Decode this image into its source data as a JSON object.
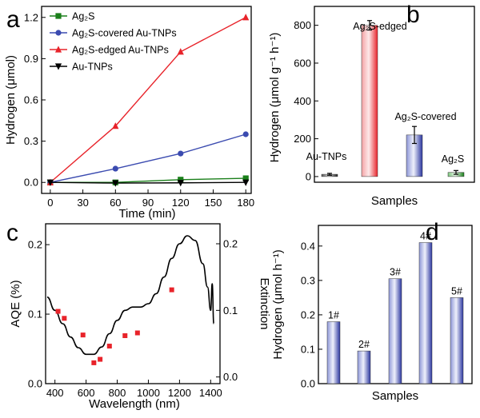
{
  "colors": {
    "ag2s": "#1a7f1a",
    "covered": "#3b4bb0",
    "edged": "#e8232a",
    "autnps": "#000000",
    "aqe": "#e8232a",
    "extinction": "#000000"
  },
  "panels": [
    {
      "letter": "a"
    },
    {
      "letter": "b"
    },
    {
      "letter": "c"
    },
    {
      "letter": "d"
    }
  ],
  "chart_data": [
    {
      "id": "a",
      "type": "line",
      "xlabel": "Time (min)",
      "ylabel": "Hydrogen (μmol)",
      "x": [
        0,
        60,
        120,
        180
      ],
      "xlim": [
        -8,
        185
      ],
      "ylim": [
        -0.08,
        1.28
      ],
      "xticks": [
        "0",
        "30",
        "60",
        "90",
        "120",
        "150",
        "180"
      ],
      "yticks": [
        "0.0",
        "0.3",
        "0.6",
        "0.9",
        "1.2"
      ],
      "series": [
        {
          "name": "Ag₂S",
          "marker": "square",
          "color_key": "ag2s",
          "values": [
            0.0,
            0.0,
            0.02,
            0.03
          ]
        },
        {
          "name": "Ag₂S-covered Au-TNPs",
          "marker": "circle",
          "color_key": "covered",
          "values": [
            0.0,
            0.1,
            0.21,
            0.35
          ]
        },
        {
          "name": "Ag₂S-edged Au-TNPs",
          "marker": "triangle-up",
          "color_key": "edged",
          "values": [
            0.0,
            0.41,
            0.95,
            1.2
          ]
        },
        {
          "name": "Au-TNPs",
          "marker": "triangle-down",
          "color_key": "autnps",
          "values": [
            0.0,
            -0.005,
            -0.003,
            0.0
          ]
        }
      ]
    },
    {
      "id": "b",
      "type": "bar",
      "xlabel": "Samples",
      "ylabel": "Hydrogen (μmol g⁻¹ h⁻¹)",
      "ylim": [
        -30,
        900
      ],
      "yticks": [
        "0",
        "200",
        "400",
        "600",
        "800"
      ],
      "categories": [
        "Au-TNPs",
        "Ag₂S-edged",
        "Ag₂S-covered",
        "Ag₂S"
      ],
      "values": [
        12,
        800,
        220,
        22
      ],
      "errors": [
        5,
        25,
        45,
        10
      ],
      "color_keys": [
        "autnps",
        "edged",
        "covered",
        "ag2s"
      ]
    },
    {
      "id": "c",
      "type": "scatter",
      "xlabel": "Wavelength (nm)",
      "ylabel": "AQE (%)",
      "y2label": "Extinction",
      "xlim": [
        340,
        1460
      ],
      "ylim": [
        0.0,
        0.23
      ],
      "y2lim": [
        -0.01,
        0.23
      ],
      "xticks": [
        "400",
        "600",
        "800",
        "1000",
        "1200",
        "1400"
      ],
      "yticks": [
        "0.0",
        "0.1",
        "0.2"
      ],
      "y2ticks": [
        "0.0",
        "0.1",
        "0.2"
      ],
      "series": [
        {
          "name": "AQE",
          "color_key": "aqe",
          "x": [
            420,
            460,
            580,
            650,
            690,
            750,
            850,
            930,
            1150
          ],
          "values": [
            0.104,
            0.094,
            0.07,
            0.03,
            0.035,
            0.054,
            0.069,
            0.073,
            0.135
          ]
        },
        {
          "name": "Extinction",
          "color_key": "extinction",
          "x": [
            350,
            400,
            450,
            500,
            550,
            600,
            650,
            700,
            750,
            800,
            850,
            900,
            950,
            1000,
            1050,
            1100,
            1150,
            1200,
            1250,
            1300,
            1350,
            1380,
            1400,
            1410,
            1420
          ],
          "values": [
            0.12,
            0.1,
            0.08,
            0.06,
            0.044,
            0.034,
            0.034,
            0.045,
            0.065,
            0.085,
            0.1,
            0.105,
            0.105,
            0.11,
            0.125,
            0.15,
            0.178,
            0.2,
            0.212,
            0.205,
            0.17,
            0.135,
            0.1,
            0.14,
            0.08
          ]
        }
      ]
    },
    {
      "id": "d",
      "type": "bar",
      "xlabel": "Samples",
      "ylabel": "Hydrogen (μmol h⁻¹)",
      "ylim": [
        0.0,
        0.46
      ],
      "yticks": [
        "0.0",
        "0.1",
        "0.2",
        "0.3",
        "0.4"
      ],
      "categories": [
        "1#",
        "2#",
        "3#",
        "4#",
        "5#"
      ],
      "values": [
        0.18,
        0.095,
        0.305,
        0.41,
        0.25
      ],
      "color_keys": [
        "covered",
        "covered",
        "covered",
        "covered",
        "covered"
      ]
    }
  ]
}
